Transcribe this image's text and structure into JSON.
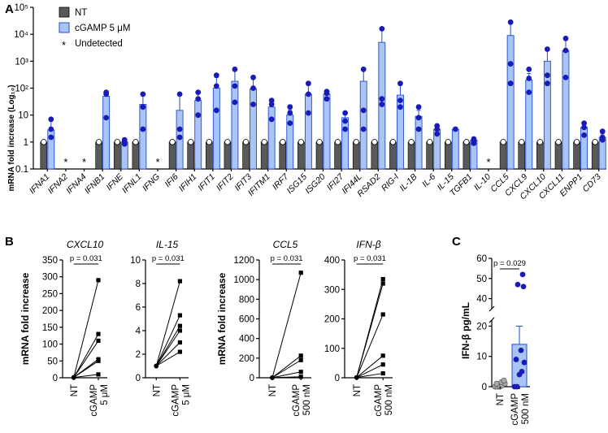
{
  "panels": {
    "A": "A",
    "B": "B",
    "C": "C"
  },
  "colors": {
    "nt": "#595959",
    "cgamp_fill": "#a9c4f5",
    "cgamp_stroke": "#1f4fd1",
    "dot": "#1a1ab8"
  },
  "chart_data": [
    {
      "id": "A",
      "type": "bar",
      "yscale": "log",
      "ylabel": "mRNA fold increase (Log₁₀)",
      "ylim": [
        0.1,
        100000
      ],
      "yticks": [
        "0.1",
        "1",
        "10",
        "10²",
        "10³",
        "10⁴",
        "10⁵"
      ],
      "legend": {
        "position": "top-left",
        "items": [
          "NT",
          "cGAMP 5 μM",
          "Undetected"
        ],
        "undetected_symbol": "*"
      },
      "categories": [
        "IFNA1",
        "IFNA2",
        "IFNA4",
        "IFNB1",
        "IFNE",
        "IFNL1",
        "IFNG",
        "IFI6",
        "IFIH1",
        "IFIT1",
        "IFIT2",
        "IFIT3",
        "IFITM1",
        "IRF7",
        "ISG15",
        "ISG20",
        "IFI27",
        "IFI44L",
        "RSAD2",
        "RIG-I",
        "IL-1B",
        "IL-6",
        "IL-15",
        "TGFB1",
        "IL-10",
        "CCL5",
        "CXCL9",
        "CXCL10",
        "CXCL11",
        "ENPP1",
        "CD73"
      ],
      "undetected": [
        "IFNA2",
        "IFNA4",
        "IFNG",
        "IL-10"
      ],
      "series": [
        {
          "name": "NT",
          "values": [
            1,
            null,
            null,
            1,
            1,
            1,
            null,
            1,
            1,
            1,
            1,
            1,
            1,
            1,
            1,
            1,
            1,
            1,
            1,
            1,
            1,
            1,
            1,
            1,
            null,
            1,
            1,
            1,
            1,
            1,
            1
          ]
        },
        {
          "name": "cGAMP 5 μM",
          "values": [
            2.8,
            null,
            null,
            50,
            1,
            25,
            null,
            15,
            35,
            100,
            180,
            95,
            20,
            10,
            60,
            60,
            8,
            180,
            5000,
            55,
            9,
            3,
            3,
            1.2,
            null,
            9000,
            200,
            1000,
            2500,
            3.5,
            1.5
          ],
          "sem_upper": [
            7,
            null,
            null,
            80,
            1.2,
            60,
            null,
            60,
            75,
            250,
            500,
            230,
            35,
            15,
            130,
            75,
            12,
            500,
            16000,
            130,
            15,
            4,
            3.5,
            1.3,
            null,
            25000,
            350,
            2500,
            7000,
            5,
            2
          ],
          "points": [
            [
              1.5,
              3,
              7
            ],
            null,
            null,
            [
              8,
              60,
              70
            ],
            [
              0.85,
              1.05,
              1.2
            ],
            [
              3,
              20,
              60
            ],
            null,
            [
              1.5,
              3,
              60
            ],
            [
              10,
              40,
              70
            ],
            [
              15,
              120,
              300
            ],
            [
              30,
              120,
              500
            ],
            [
              25,
              100,
              250
            ],
            [
              7,
              25,
              35
            ],
            [
              5,
              12,
              20
            ],
            [
              12,
              60,
              150
            ],
            [
              40,
              65,
              75
            ],
            [
              3,
              6,
              12
            ],
            [
              3,
              15,
              500
            ],
            [
              25,
              40,
              16000
            ],
            [
              20,
              35,
              150
            ],
            [
              3,
              8,
              20
            ],
            [
              2,
              3,
              4
            ],
            [
              3
            ],
            [
              0.9,
              1.1,
              1.3
            ],
            null,
            [
              150,
              800,
              28000
            ],
            [
              70,
              230,
              500
            ],
            [
              150,
              300,
              2800
            ],
            [
              250,
              2500,
              7000
            ],
            [
              1.8,
              3.5,
              5
            ],
            [
              1.2,
              1.5,
              2.5
            ]
          ]
        }
      ]
    },
    {
      "id": "B1",
      "type": "scatter",
      "title": "CXCL10",
      "ylabel": "mRNA fold increase",
      "categories": [
        "NT",
        "cGAMP 5 μM"
      ],
      "xlabels": [
        "NT",
        "cGAMP",
        "5 μM"
      ],
      "ylim": [
        0,
        350
      ],
      "yticks": [
        "0",
        "50",
        "100",
        "150",
        "200",
        "250",
        "300",
        "350"
      ],
      "pvalue": "p = 0.031",
      "pairs": [
        [
          1,
          290
        ],
        [
          1,
          130
        ],
        [
          1,
          110
        ],
        [
          1,
          55
        ],
        [
          1,
          50
        ],
        [
          1,
          10
        ]
      ]
    },
    {
      "id": "B2",
      "type": "scatter",
      "title": "IL-15",
      "categories": [
        "NT",
        "cGAMP 5 μM"
      ],
      "xlabels": [
        "NT",
        "cGAMP",
        "5 μM"
      ],
      "ylim": [
        0,
        10
      ],
      "yticks": [
        "0",
        "2",
        "4",
        "6",
        "8",
        "10"
      ],
      "pvalue": "p = 0.031",
      "pairs": [
        [
          1,
          8.2
        ],
        [
          1,
          5.3
        ],
        [
          1,
          4.4
        ],
        [
          1,
          4.0
        ],
        [
          1,
          3.0
        ],
        [
          1,
          2.2
        ]
      ]
    },
    {
      "id": "B3",
      "type": "scatter",
      "title": "CCL5",
      "ylabel": "mRNA fold increase",
      "categories": [
        "NT",
        "cGAMP 500 nM"
      ],
      "xlabels": [
        "NT",
        "cGAMP",
        "500 nM"
      ],
      "ylim": [
        0,
        1200
      ],
      "yticks": [
        "0",
        "200",
        "400",
        "600",
        "800",
        "1000",
        "1200"
      ],
      "pvalue": "p = 0.031",
      "pairs": [
        [
          1,
          1070
        ],
        [
          1,
          225
        ],
        [
          1,
          180
        ],
        [
          1,
          60
        ],
        [
          1,
          10
        ]
      ]
    },
    {
      "id": "B4",
      "type": "scatter",
      "title": "IFN-β",
      "categories": [
        "NT",
        "cGAMP 500 nM"
      ],
      "xlabels": [
        "NT",
        "cGAMP",
        "500 nM"
      ],
      "ylim": [
        0,
        400
      ],
      "yticks": [
        "0",
        "100",
        "200",
        "300",
        "400"
      ],
      "pvalue": "p = 0.031",
      "pairs": [
        [
          1,
          335
        ],
        [
          1,
          320
        ],
        [
          1,
          215
        ],
        [
          1,
          75
        ],
        [
          1,
          45
        ],
        [
          1,
          15
        ]
      ]
    },
    {
      "id": "C",
      "type": "bar",
      "ylabel": "IFN-β pg/mL",
      "categories": [
        "NT",
        "cGAMP 500 nM"
      ],
      "xlabels": [
        "NT",
        "cGAMP",
        "500 nM"
      ],
      "ylim": [
        0,
        60
      ],
      "axis_break": [
        22,
        35
      ],
      "yticks": [
        "0",
        "10",
        "20",
        "40",
        "50",
        "60"
      ],
      "pvalue": "p = 0.029",
      "values": [
        0.5,
        14
      ],
      "sem_upper": [
        null,
        20
      ],
      "points": [
        [
          0,
          0,
          0,
          0.5,
          1,
          1,
          1.5,
          2
        ],
        [
          0,
          0,
          4,
          5,
          8,
          9,
          12,
          46,
          47,
          52
        ]
      ]
    }
  ]
}
